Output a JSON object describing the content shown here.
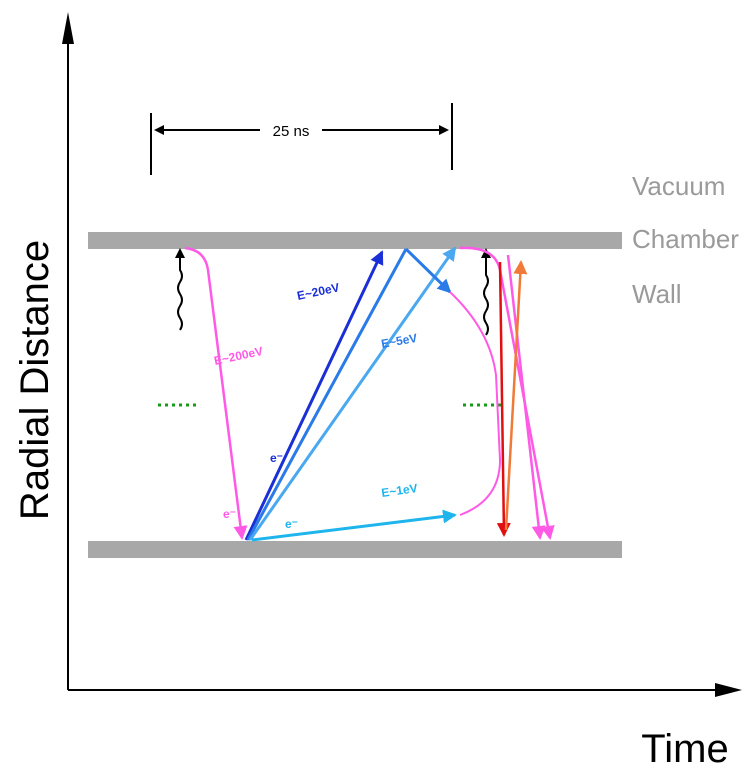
{
  "axes": {
    "y_label": "Radial Distance",
    "x_label": "Time"
  },
  "wall_label": {
    "line1": "Vacuum",
    "line2": "Chamber",
    "line3": "Wall"
  },
  "bunch_spacing_label": "25 ns",
  "electron_labels": {
    "e200_left": "E~200eV",
    "e20": "E~20eV",
    "e5": "E~5eV",
    "e1": "E~1eV"
  },
  "particle_symbol": "e⁻",
  "colors": {
    "wall": "#a8a8a8",
    "axis": "#000000",
    "magenta": "#ff5ae6",
    "dark_blue": "#1a2fd6",
    "mid_blue": "#2a7ae8",
    "light_blue": "#4aa8f0",
    "cyan": "#1eb4ec",
    "red": "#e01010",
    "orange": "#f07a38",
    "green": "#1a9a1a",
    "wall_text": "#9a9a9a"
  }
}
